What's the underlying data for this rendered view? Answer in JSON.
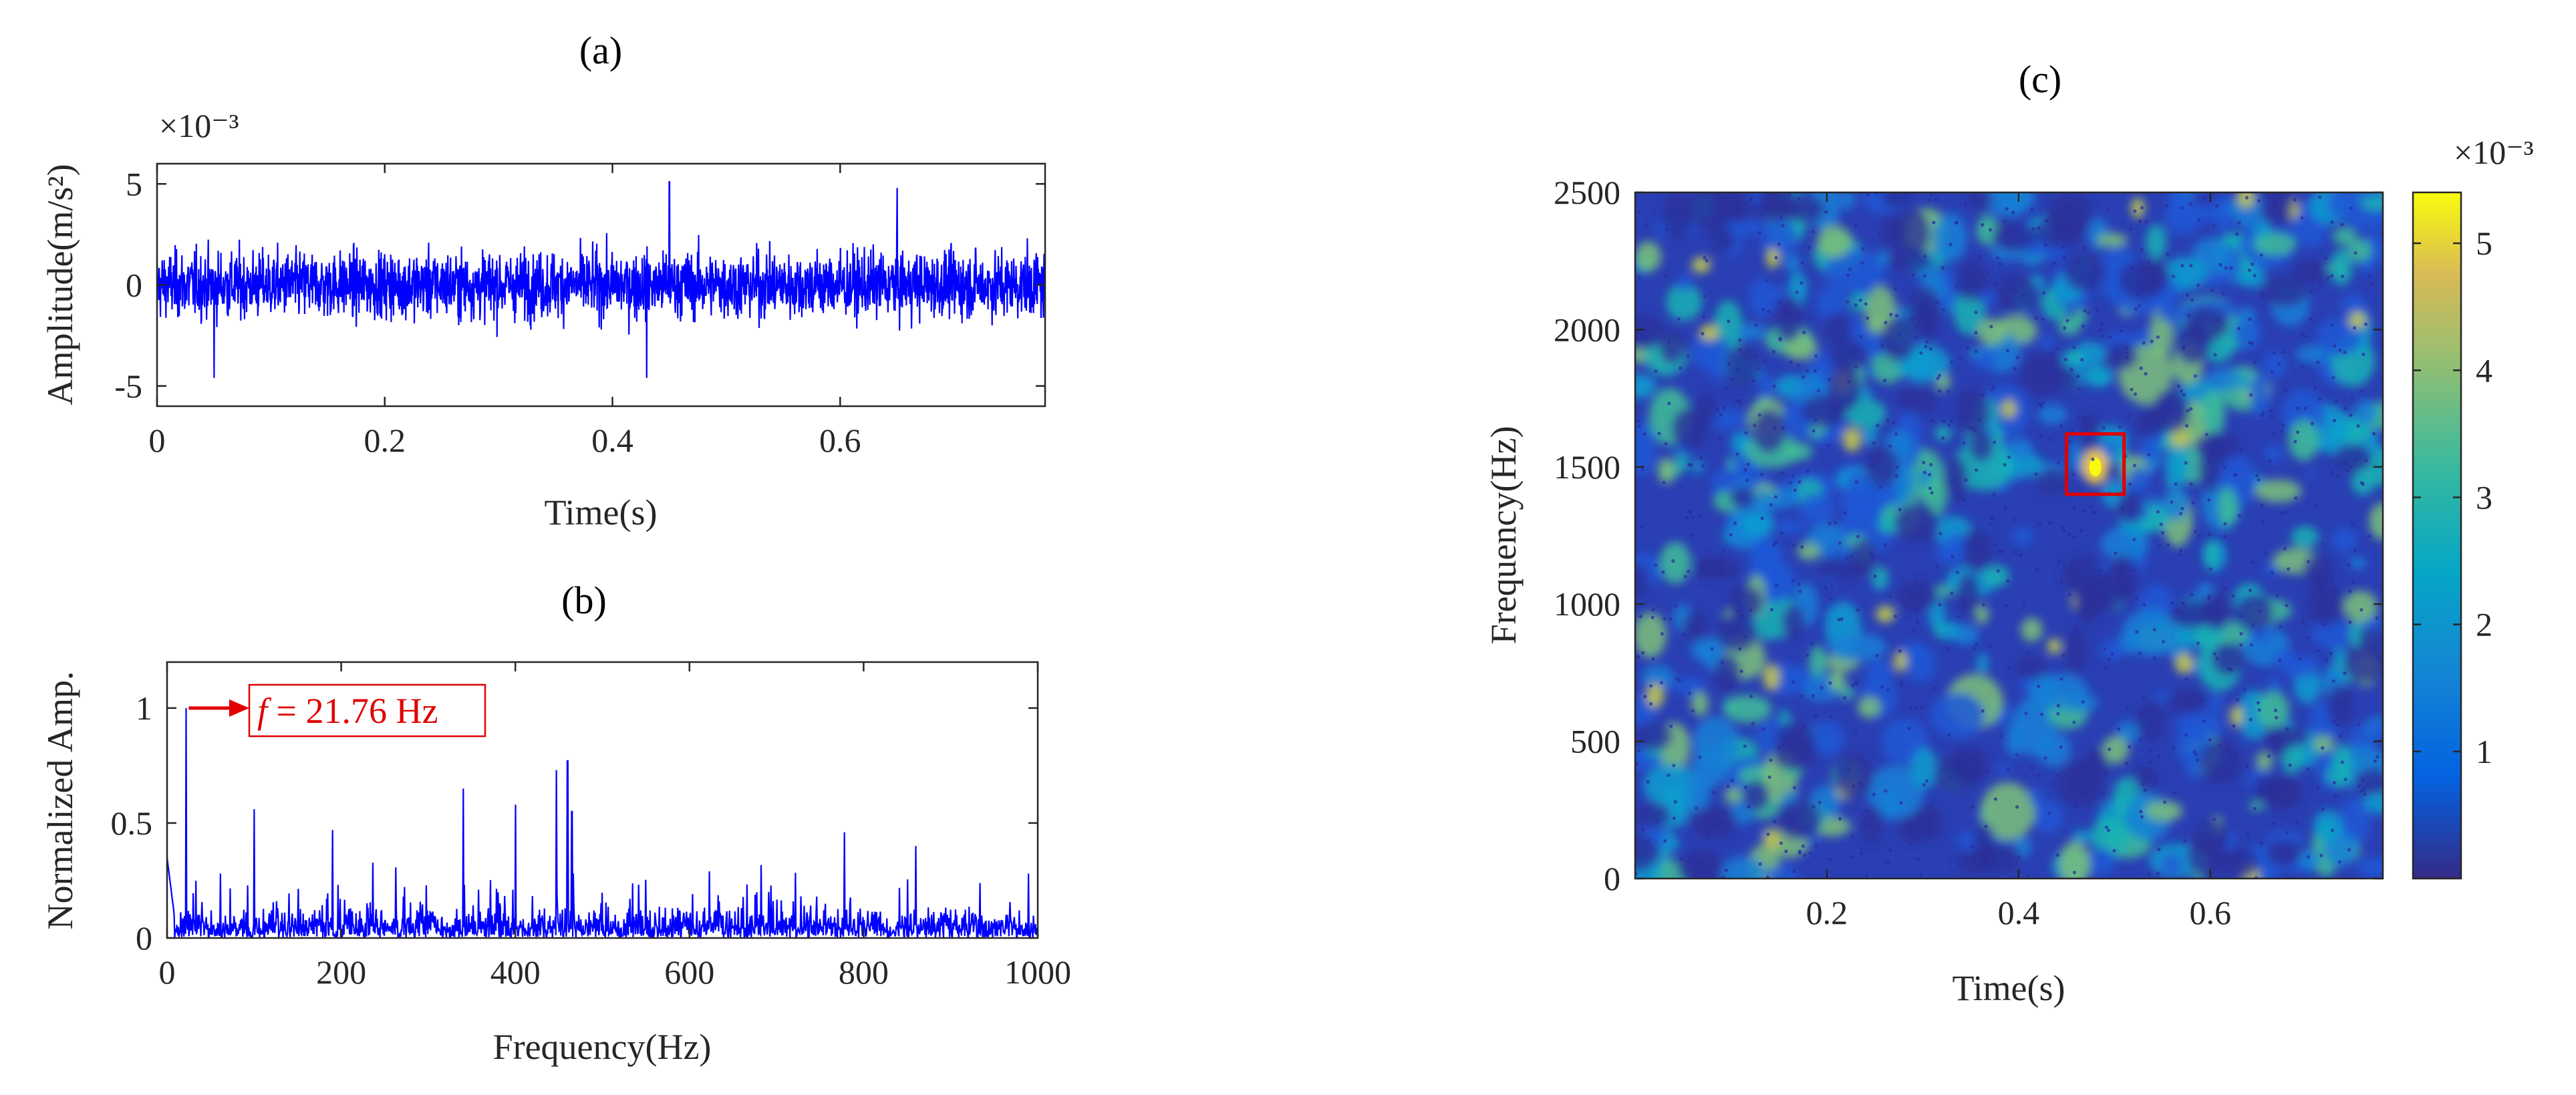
{
  "colors": {
    "signal": "#0000ff",
    "annotation": "#e00000",
    "axis": "#262626"
  },
  "colormap": "parula",
  "chart_data": [
    {
      "panel": "(a)",
      "type": "line",
      "xlabel": "Time(s)",
      "ylabel": "Amplitude(m/s²)",
      "y_exponent": "×10⁻³",
      "xlim": [
        0,
        0.78
      ],
      "ylim": [
        -6,
        6
      ],
      "xticks": [
        0,
        0.2,
        0.4,
        0.6
      ],
      "xtick_labels": [
        "0",
        "0.2",
        "0.4",
        "0.6"
      ],
      "yticks": [
        -5,
        0,
        5
      ],
      "ytick_labels": [
        "-5",
        "0",
        "5"
      ],
      "grid": false,
      "series": [
        {
          "description": "dense random vibration signal, typical span about -2.5 to 2.5, extremes about ±5",
          "peaks": [
            {
              "x": 0.45,
              "y": 5.1
            },
            {
              "x": 0.43,
              "y": -4.6
            },
            {
              "x": 0.65,
              "y": 4.8
            },
            {
              "x": 0.05,
              "y": -4.6
            }
          ]
        }
      ]
    },
    {
      "panel": "(b)",
      "type": "line",
      "xlabel": "Frequency(Hz)",
      "ylabel": "Normalized Amp.",
      "xlim": [
        0,
        1000
      ],
      "ylim": [
        0,
        1.2
      ],
      "xticks": [
        0,
        200,
        400,
        600,
        800,
        1000
      ],
      "xtick_labels": [
        "0",
        "200",
        "400",
        "600",
        "800",
        "1000"
      ],
      "yticks": [
        0,
        0.5,
        1
      ],
      "ytick_labels": [
        "0",
        "0.5",
        "1"
      ],
      "grid": false,
      "peaks": [
        {
          "x": 21.76,
          "y": 1.0
        },
        {
          "x": 100,
          "y": 0.56
        },
        {
          "x": 190,
          "y": 0.47
        },
        {
          "x": 340,
          "y": 0.65
        },
        {
          "x": 400,
          "y": 0.58
        },
        {
          "x": 447,
          "y": 0.73
        },
        {
          "x": 460,
          "y": 0.77
        },
        {
          "x": 465,
          "y": 0.55
        },
        {
          "x": 778,
          "y": 0.46
        },
        {
          "x": 860,
          "y": 0.4
        }
      ],
      "annotation": {
        "italic": "f",
        "text": " = 21.76 Hz"
      }
    },
    {
      "panel": "(c)",
      "type": "heatmap",
      "xlabel": "Time(s)",
      "ylabel": "Frequency(Hz)",
      "xlim": [
        0,
        0.78
      ],
      "ylim": [
        0,
        2500
      ],
      "xticks": [
        0.2,
        0.4,
        0.6
      ],
      "xtick_labels": [
        "0.2",
        "0.4",
        "0.6"
      ],
      "yticks": [
        0,
        500,
        1000,
        1500,
        2000,
        2500
      ],
      "ytick_labels": [
        "0",
        "500",
        "1000",
        "1500",
        "2000",
        "2500"
      ],
      "colorbar": {
        "exponent": "×10⁻³",
        "ticks": [
          1,
          2,
          3,
          4,
          5
        ],
        "tick_labels": [
          "1",
          "2",
          "3",
          "4",
          "5"
        ],
        "range": [
          0,
          5.4
        ]
      },
      "highlight_box": {
        "x": [
          0.45,
          0.51
        ],
        "y": [
          1400,
          1620
        ],
        "peak": {
          "x": 0.48,
          "y": 1500,
          "value": 5.4
        }
      }
    }
  ]
}
